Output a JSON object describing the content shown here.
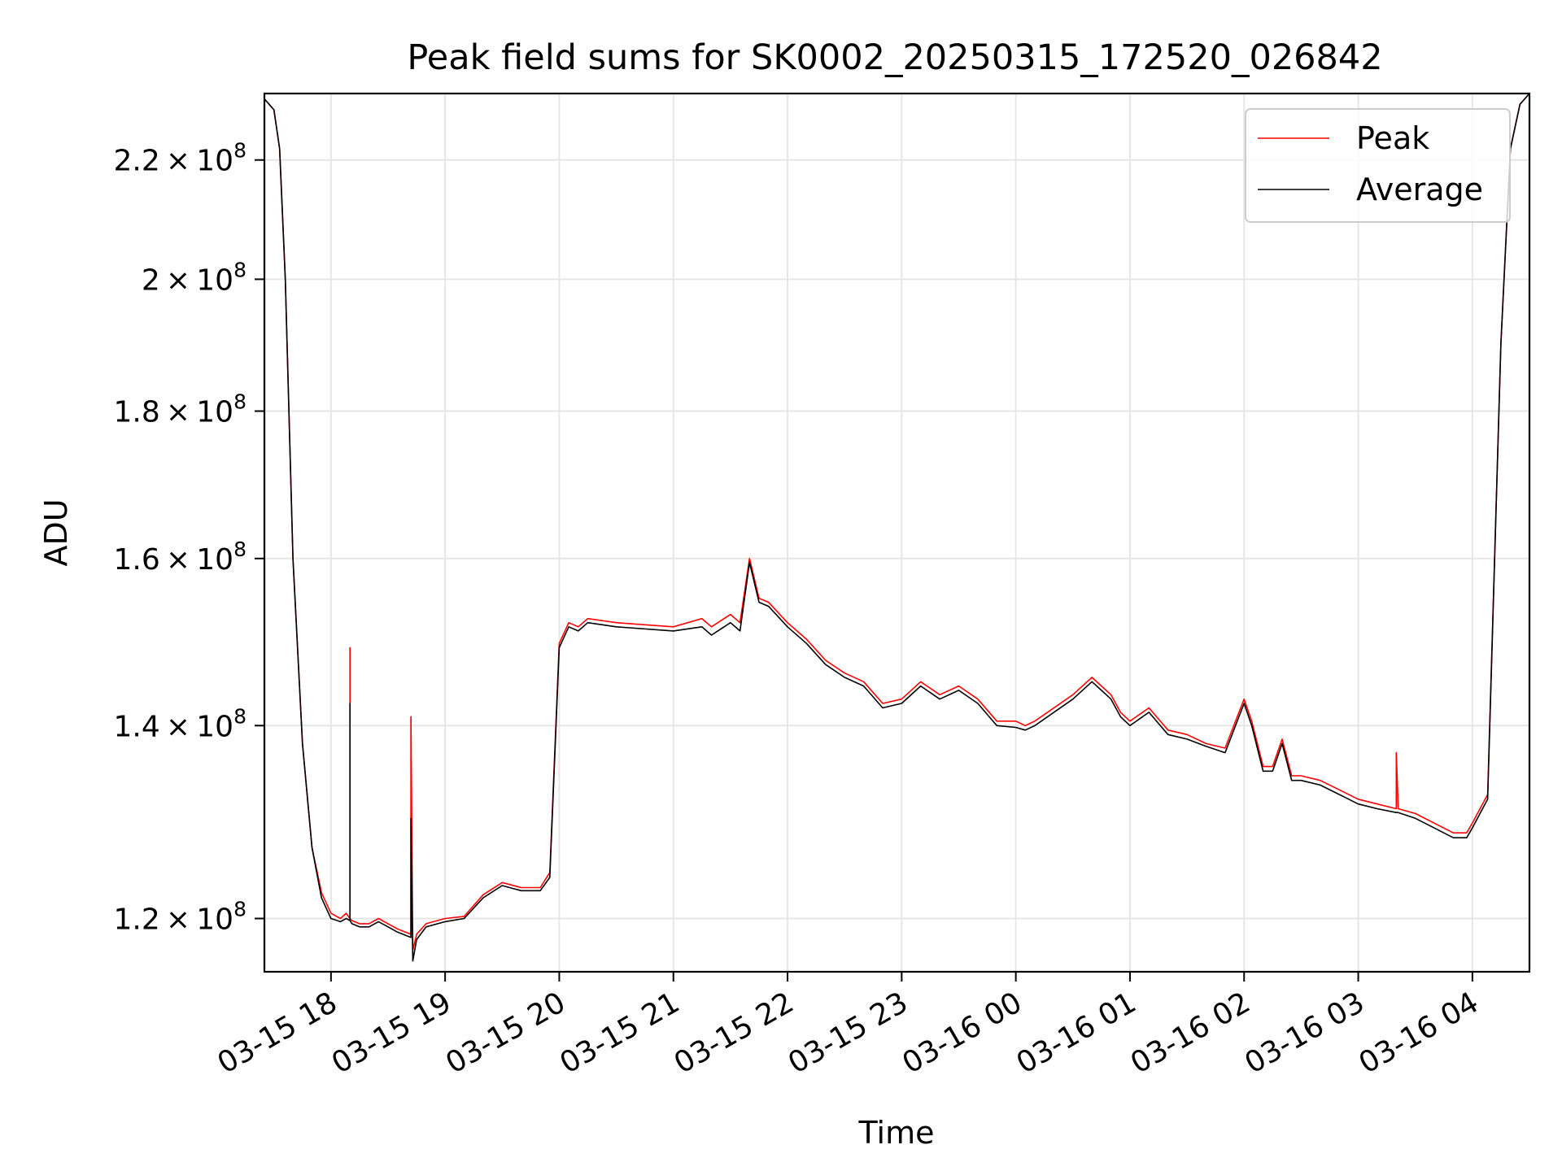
{
  "chart_data": {
    "type": "line",
    "title": "Peak field sums for SK0002_20250315_172520_026842",
    "xlabel": "Time",
    "ylabel": "ADU",
    "yscale": "log",
    "ylim": [
      115000000,
      232000000
    ],
    "xlim": [
      "03-15 17:25",
      "03-16 04:30"
    ],
    "grid": true,
    "legend_position": "upper right",
    "x_ticks": [
      "03-15 18",
      "03-15 19",
      "03-15 20",
      "03-15 21",
      "03-15 22",
      "03-15 23",
      "03-16 00",
      "03-16 01",
      "03-16 02",
      "03-16 03",
      "03-16 04"
    ],
    "y_ticks": [
      {
        "value": 120000000,
        "mantissa": "1.2",
        "exp": "8"
      },
      {
        "value": 140000000,
        "mantissa": "1.4",
        "exp": "8"
      },
      {
        "value": 160000000,
        "mantissa": "1.6",
        "exp": "8"
      },
      {
        "value": 180000000,
        "mantissa": "1.8",
        "exp": "8"
      },
      {
        "value": 200000000,
        "mantissa": "2",
        "exp": "8"
      },
      {
        "value": 220000000,
        "mantissa": "2.2",
        "exp": "8"
      }
    ],
    "series": [
      {
        "name": "Peak",
        "color": "#ff0000",
        "x": [
          "03-15 17:25",
          "03-15 17:30",
          "03-15 17:33",
          "03-15 17:36",
          "03-15 17:40",
          "03-15 17:45",
          "03-15 17:50",
          "03-15 17:55",
          "03-15 18:00",
          "03-15 18:05",
          "03-15 18:08",
          "03-15 18:10",
          "03-15 18:10",
          "03-15 18:10",
          "03-15 18:11",
          "03-15 18:15",
          "03-15 18:20",
          "03-15 18:25",
          "03-15 18:30",
          "03-15 18:35",
          "03-15 18:42",
          "03-15 18:42",
          "03-15 18:43",
          "03-15 18:45",
          "03-15 18:50",
          "03-15 19:00",
          "03-15 19:10",
          "03-15 19:20",
          "03-15 19:30",
          "03-15 19:40",
          "03-15 19:50",
          "03-15 19:55",
          "03-15 20:00",
          "03-15 20:05",
          "03-15 20:10",
          "03-15 20:15",
          "03-15 20:30",
          "03-15 21:00",
          "03-15 21:15",
          "03-15 21:20",
          "03-15 21:30",
          "03-15 21:35",
          "03-15 21:40",
          "03-15 21:45",
          "03-15 21:50",
          "03-15 22:00",
          "03-15 22:10",
          "03-15 22:20",
          "03-15 22:30",
          "03-15 22:40",
          "03-15 22:50",
          "03-15 23:00",
          "03-15 23:10",
          "03-15 23:20",
          "03-15 23:30",
          "03-15 23:40",
          "03-15 23:50",
          "03-16 00:00",
          "03-16 00:05",
          "03-16 00:10",
          "03-16 00:30",
          "03-16 00:40",
          "03-16 00:45",
          "03-16 00:50",
          "03-16 00:55",
          "03-16 01:00",
          "03-16 01:10",
          "03-16 01:20",
          "03-16 01:30",
          "03-16 01:40",
          "03-16 01:50",
          "03-16 02:00",
          "03-16 02:04",
          "03-16 02:10",
          "03-16 02:15",
          "03-16 02:20",
          "03-16 02:25",
          "03-16 02:30",
          "03-16 02:40",
          "03-16 02:50",
          "03-16 03:00",
          "03-16 03:10",
          "03-16 03:20",
          "03-16 03:20",
          "03-16 03:21",
          "03-16 03:30",
          "03-16 03:40",
          "03-16 03:50",
          "03-16 03:57",
          "03-16 04:00",
          "03-16 04:08",
          "03-16 04:15",
          "03-16 04:20",
          "03-16 04:25",
          "03-16 04:30"
        ],
        "y": [
          231000000,
          229000000,
          222000000,
          200000000,
          160000000,
          138000000,
          127000000,
          122500000,
          120500000,
          120000000,
          120500000,
          120000000,
          149000000,
          120000000,
          119800000,
          119500000,
          119500000,
          120000000,
          119500000,
          119000000,
          118500000,
          141000000,
          117000000,
          118500000,
          119500000,
          120000000,
          120200000,
          122300000,
          123500000,
          123000000,
          123000000,
          124500000,
          149500000,
          152000000,
          151500000,
          152500000,
          152000000,
          151500000,
          152500000,
          151500000,
          153000000,
          152000000,
          160000000,
          155000000,
          154500000,
          152000000,
          150000000,
          147500000,
          146000000,
          145000000,
          142500000,
          143000000,
          145000000,
          143500000,
          144500000,
          143000000,
          140500000,
          140500000,
          140000000,
          140500000,
          143500000,
          145500000,
          144500000,
          143500000,
          141500000,
          140500000,
          142000000,
          139500000,
          139000000,
          138000000,
          137500000,
          143000000,
          140500000,
          135500000,
          135500000,
          138500000,
          134500000,
          134500000,
          134000000,
          133000000,
          132000000,
          131500000,
          131000000,
          137000000,
          131000000,
          130500000,
          129500000,
          128500000,
          128500000,
          129500000,
          132500000,
          190000000,
          222000000,
          230000000,
          232000000
        ]
      },
      {
        "name": "Average",
        "color": "#000000",
        "x": [
          "03-15 17:25",
          "03-15 17:30",
          "03-15 17:33",
          "03-15 17:36",
          "03-15 17:40",
          "03-15 17:45",
          "03-15 17:50",
          "03-15 17:55",
          "03-15 18:00",
          "03-15 18:05",
          "03-15 18:08",
          "03-15 18:10",
          "03-15 18:10",
          "03-15 18:10",
          "03-15 18:11",
          "03-15 18:15",
          "03-15 18:20",
          "03-15 18:25",
          "03-15 18:30",
          "03-15 18:35",
          "03-15 18:42",
          "03-15 18:42",
          "03-15 18:43",
          "03-15 18:45",
          "03-15 18:50",
          "03-15 19:00",
          "03-15 19:10",
          "03-15 19:20",
          "03-15 19:30",
          "03-15 19:40",
          "03-15 19:50",
          "03-15 19:55",
          "03-15 20:00",
          "03-15 20:05",
          "03-15 20:10",
          "03-15 20:15",
          "03-15 20:30",
          "03-15 21:00",
          "03-15 21:15",
          "03-15 21:20",
          "03-15 21:30",
          "03-15 21:35",
          "03-15 21:40",
          "03-15 21:45",
          "03-15 21:50",
          "03-15 22:00",
          "03-15 22:10",
          "03-15 22:20",
          "03-15 22:30",
          "03-15 22:40",
          "03-15 22:50",
          "03-15 23:00",
          "03-15 23:10",
          "03-15 23:20",
          "03-15 23:30",
          "03-15 23:40",
          "03-15 23:50",
          "03-16 00:00",
          "03-16 00:05",
          "03-16 00:10",
          "03-16 00:30",
          "03-16 00:40",
          "03-16 00:45",
          "03-16 00:50",
          "03-16 00:55",
          "03-16 01:00",
          "03-16 01:10",
          "03-16 01:20",
          "03-16 01:30",
          "03-16 01:40",
          "03-16 01:50",
          "03-16 02:00",
          "03-16 02:04",
          "03-16 02:10",
          "03-16 02:15",
          "03-16 02:20",
          "03-16 02:25",
          "03-16 02:30",
          "03-16 02:40",
          "03-16 02:50",
          "03-16 03:00",
          "03-16 03:10",
          "03-16 03:20",
          "03-16 03:20",
          "03-16 03:21",
          "03-16 03:30",
          "03-16 03:40",
          "03-16 03:50",
          "03-16 03:57",
          "03-16 04:00",
          "03-16 04:08",
          "03-16 04:15",
          "03-16 04:20",
          "03-16 04:25",
          "03-16 04:30"
        ],
        "y": [
          231000000,
          229000000,
          222000000,
          200000000,
          160000000,
          138000000,
          127000000,
          122000000,
          120000000,
          119700000,
          120000000,
          119800000,
          142500000,
          119800000,
          119500000,
          119200000,
          119200000,
          119700000,
          119200000,
          118700000,
          118200000,
          130000000,
          116000000,
          118000000,
          119200000,
          119700000,
          120000000,
          122000000,
          123200000,
          122700000,
          122700000,
          124000000,
          149000000,
          151500000,
          151000000,
          152000000,
          151500000,
          151000000,
          151500000,
          150500000,
          152000000,
          151000000,
          159500000,
          154500000,
          154000000,
          151500000,
          149500000,
          147000000,
          145500000,
          144500000,
          142000000,
          142500000,
          144500000,
          143000000,
          144000000,
          142500000,
          140000000,
          139800000,
          139500000,
          140000000,
          143000000,
          145000000,
          144000000,
          143000000,
          141000000,
          140000000,
          141500000,
          139000000,
          138500000,
          137700000,
          137000000,
          142500000,
          140000000,
          135000000,
          135000000,
          138000000,
          134000000,
          134000000,
          133500000,
          132500000,
          131500000,
          131000000,
          130600000,
          130600000,
          130600000,
          130000000,
          129000000,
          128000000,
          128000000,
          129000000,
          132000000,
          190000000,
          222000000,
          230000000,
          232000000
        ]
      }
    ]
  }
}
